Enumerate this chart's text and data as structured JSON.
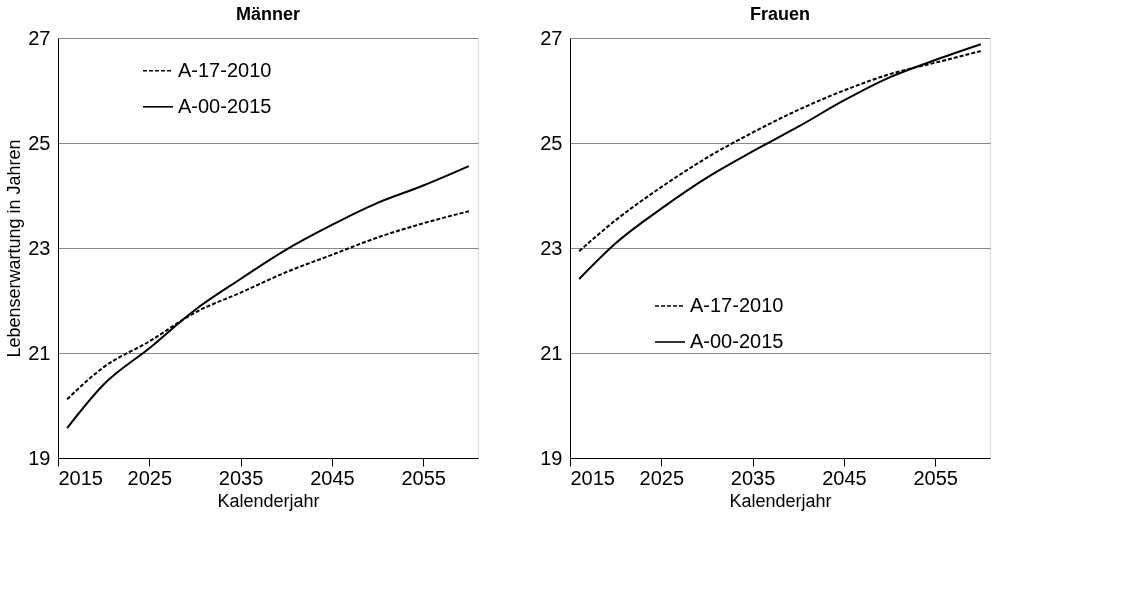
{
  "chart_data": [
    {
      "type": "line",
      "title": "Männer",
      "xlabel": "Kalenderjahr",
      "ylabel": "Lebenserwartung in Jahren",
      "x": [
        2016,
        2020,
        2025,
        2030,
        2035,
        2040,
        2045,
        2050,
        2055,
        2060
      ],
      "xlim": [
        2015,
        2061
      ],
      "xticks": [
        2015,
        2025,
        2035,
        2045,
        2055
      ],
      "ylim": [
        19,
        27
      ],
      "yticks": [
        19,
        21,
        23,
        25,
        27
      ],
      "grid": "y",
      "legend": "top left",
      "marker": "none",
      "series": [
        {
          "name": "A-17-2010",
          "color": "#000000",
          "line_style": "dashed",
          "values": [
            20.12,
            20.73,
            21.22,
            21.77,
            22.15,
            22.54,
            22.87,
            23.2,
            23.47,
            23.7
          ]
        },
        {
          "name": "A-00-2015",
          "color": "#000000",
          "line_style": "solid",
          "values": [
            19.57,
            20.4,
            21.09,
            21.82,
            22.41,
            22.97,
            23.44,
            23.86,
            24.19,
            24.56
          ]
        }
      ]
    },
    {
      "type": "line",
      "title": "Frauen",
      "xlabel": "Kalenderjahr",
      "x": [
        2016,
        2020,
        2025,
        2030,
        2035,
        2040,
        2045,
        2050,
        2055,
        2060
      ],
      "xlim": [
        2015,
        2061
      ],
      "xticks": [
        2015,
        2025,
        2035,
        2045,
        2055
      ],
      "ylim": [
        19,
        27
      ],
      "yticks": [
        19,
        21,
        23,
        25,
        27
      ],
      "grid": "y",
      "legend": "left",
      "marker": "none",
      "series": [
        {
          "name": "A-17-2010",
          "color": "#000000",
          "line_style": "dashed",
          "values": [
            22.94,
            23.53,
            24.16,
            24.72,
            25.2,
            25.63,
            26.0,
            26.31,
            26.53,
            26.75
          ]
        },
        {
          "name": "A-00-2015",
          "color": "#000000",
          "line_style": "solid",
          "values": [
            22.41,
            23.09,
            23.75,
            24.34,
            24.84,
            25.31,
            25.81,
            26.25,
            26.58,
            26.88
          ]
        }
      ]
    }
  ]
}
